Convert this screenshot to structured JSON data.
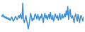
{
  "chart_data": {
    "type": "line",
    "color": "#3b8fd6",
    "tick_labels": false,
    "grid": false,
    "x": [
      0,
      1,
      2,
      3,
      4,
      5,
      6,
      7,
      8,
      9,
      10,
      11,
      12,
      13,
      14,
      15,
      16,
      17,
      18,
      19,
      20,
      21,
      22,
      23,
      24,
      25,
      26,
      27,
      28,
      29,
      30,
      31,
      32,
      33,
      34,
      35,
      36,
      37,
      38,
      39,
      40,
      41,
      42,
      43,
      44,
      45,
      46,
      47,
      48,
      49,
      50,
      51,
      52,
      53,
      54,
      55,
      56,
      57,
      58,
      59,
      60,
      61,
      62,
      63,
      64,
      65,
      66,
      67,
      68,
      69,
      70,
      71,
      72,
      73,
      74,
      75,
      76,
      77,
      78,
      79,
      80,
      81,
      82,
      83,
      84,
      85,
      86,
      87,
      88,
      89,
      90,
      91,
      92,
      93,
      94,
      95,
      96,
      97,
      98,
      99,
      100,
      101,
      102,
      103,
      104
    ],
    "values": [
      55,
      50,
      58,
      48,
      52,
      45,
      50,
      42,
      48,
      40,
      45,
      38,
      44,
      50,
      42,
      35,
      40,
      48,
      52,
      45,
      40,
      48,
      55,
      45,
      60,
      50,
      42,
      95,
      40,
      30,
      45,
      55,
      38,
      20,
      10,
      25,
      48,
      62,
      50,
      35,
      45,
      40,
      55,
      60,
      50,
      42,
      58,
      48,
      38,
      52,
      45,
      60,
      40,
      30,
      50,
      62,
      45,
      55,
      40,
      50,
      58,
      42,
      65,
      48,
      40,
      55,
      35,
      45,
      60,
      50,
      45,
      55,
      38,
      50,
      62,
      40,
      52,
      58,
      45,
      50,
      60,
      48,
      70,
      55,
      85,
      40,
      60,
      75,
      50,
      45,
      55,
      40,
      30,
      50,
      60,
      45,
      35,
      58,
      40,
      30,
      50,
      55,
      45,
      35,
      50
    ],
    "xlim": [
      0,
      104
    ],
    "ylim": [
      5,
      100
    ]
  }
}
